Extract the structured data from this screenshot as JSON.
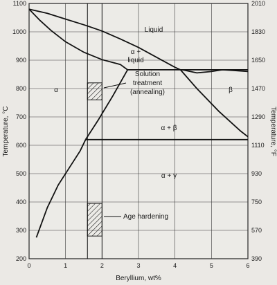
{
  "chart_data": {
    "type": "line",
    "xlabel": "Beryllium, wt%",
    "ylabel": "Temperature, °C",
    "y2label": "Temperature, °F",
    "xlim": [
      0,
      6
    ],
    "ylim": [
      200,
      1100
    ],
    "x_ticks": [
      "0",
      "1",
      "2",
      "3",
      "4",
      "5",
      "6"
    ],
    "y_ticks": [
      "200",
      "300",
      "400",
      "500",
      "600",
      "700",
      "800",
      "900",
      "1000",
      "1100"
    ],
    "y2_ticks": [
      "390",
      "570",
      "750",
      "930",
      "1110",
      "1290",
      "1470",
      "1650",
      "1830",
      "2010"
    ],
    "grid": true,
    "regions": {
      "liquid": "Liquid",
      "alpha_liquid_1": "α +",
      "alpha_liquid_2": "liquid",
      "alpha": "α",
      "beta": "β",
      "alpha_beta": "α + β",
      "alpha_gamma": "α + γ"
    },
    "annotations": {
      "solution_1": "Solution",
      "solution_2": "treatment",
      "solution_3": "(annealing)",
      "age_hardening": "Age hardening"
    },
    "hatched_ranges": [
      {
        "x": [
          1.6,
          2.0
        ],
        "y": [
          760,
          820
        ]
      },
      {
        "x": [
          1.6,
          2.0
        ],
        "y": [
          280,
          395
        ]
      }
    ],
    "vertical_markers": [
      1.6,
      2.0
    ],
    "series": [
      {
        "values": [
          [
            0,
            1080
          ],
          [
            0.5,
            1065
          ],
          [
            1.0,
            1045
          ],
          [
            1.5,
            1025
          ],
          [
            2.0,
            1003
          ],
          [
            2.5,
            975
          ],
          [
            3.0,
            945
          ],
          [
            3.5,
            910
          ],
          [
            4.0,
            875
          ],
          [
            4.15,
            866
          ]
        ]
      },
      {
        "values": [
          [
            0,
            1080
          ],
          [
            0.3,
            1040
          ],
          [
            0.6,
            1005
          ],
          [
            1.0,
            965
          ],
          [
            1.5,
            928
          ],
          [
            2.0,
            902
          ],
          [
            2.5,
            885
          ],
          [
            2.7,
            866
          ]
        ]
      },
      {
        "values": [
          [
            2.7,
            866
          ],
          [
            6,
            866
          ]
        ]
      },
      {
        "values": [
          [
            4.2,
            866
          ],
          [
            4.6,
            855
          ],
          [
            5.0,
            860
          ],
          [
            5.3,
            866
          ],
          [
            5.6,
            864
          ],
          [
            6,
            860
          ]
        ]
      },
      {
        "values": [
          [
            1.55,
            620
          ],
          [
            1.9,
            690
          ],
          [
            2.3,
            775
          ],
          [
            2.7,
            866
          ]
        ]
      },
      {
        "values": [
          [
            4.15,
            866
          ],
          [
            4.6,
            800
          ],
          [
            5.2,
            720
          ],
          [
            5.8,
            650
          ],
          [
            6,
            630
          ]
        ]
      },
      {
        "values": [
          [
            1.55,
            620
          ],
          [
            6,
            620
          ]
        ]
      },
      {
        "values": [
          [
            0.2,
            275
          ],
          [
            0.5,
            380
          ],
          [
            0.8,
            460
          ],
          [
            1.1,
            520
          ],
          [
            1.4,
            580
          ],
          [
            1.55,
            620
          ]
        ]
      }
    ]
  }
}
